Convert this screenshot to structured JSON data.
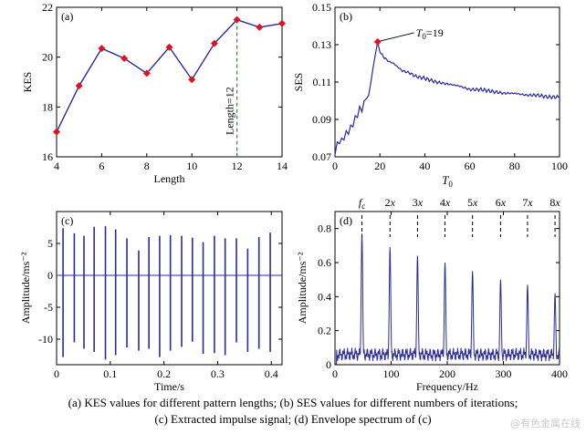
{
  "chart_data": [
    {
      "id": "a",
      "type": "line",
      "panel_label": "(a)",
      "xlabel": "Length",
      "ylabel": "KES",
      "xlim": [
        4,
        14
      ],
      "ylim": [
        16,
        22
      ],
      "xticks": [
        4,
        6,
        8,
        10,
        12,
        14
      ],
      "yticks": [
        16,
        18,
        20,
        22
      ],
      "grid": false,
      "x": [
        4,
        5,
        6,
        7,
        8,
        9,
        10,
        11,
        12,
        13,
        14
      ],
      "y": [
        17.0,
        18.85,
        20.35,
        19.95,
        19.35,
        20.4,
        19.1,
        20.55,
        21.5,
        21.2,
        21.35
      ],
      "marker": "diamond",
      "line_color": "#2a2a9c",
      "marker_color": "#e0141c",
      "annotation": {
        "text": "Length=12",
        "x": 12,
        "style": "dashed-vertical",
        "color": "#2e8b2e"
      }
    },
    {
      "id": "b",
      "type": "line",
      "panel_label": "(b)",
      "xlabel": "T0",
      "ylabel": "SES",
      "xlim": [
        0,
        100
      ],
      "ylim": [
        0.07,
        0.15
      ],
      "xticks": [
        0,
        20,
        40,
        60,
        80,
        100
      ],
      "yticks": [
        0.07,
        0.09,
        0.11,
        0.13,
        0.15
      ],
      "grid": false,
      "x": [
        0,
        1,
        2,
        3,
        4,
        5,
        6,
        7,
        8,
        9,
        10,
        11,
        12,
        13,
        14,
        15,
        16,
        17,
        18,
        19,
        20,
        22,
        24,
        26,
        28,
        30,
        33,
        36,
        40,
        45,
        50,
        55,
        60,
        65,
        70,
        75,
        80,
        85,
        90,
        95,
        100
      ],
      "y": [
        0.071,
        0.078,
        0.077,
        0.08,
        0.079,
        0.084,
        0.082,
        0.087,
        0.086,
        0.092,
        0.091,
        0.097,
        0.094,
        0.1,
        0.101,
        0.103,
        0.11,
        0.118,
        0.125,
        0.1315,
        0.126,
        0.123,
        0.121,
        0.12,
        0.118,
        0.116,
        0.115,
        0.113,
        0.112,
        0.11,
        0.109,
        0.108,
        0.106,
        0.106,
        0.105,
        0.104,
        0.104,
        0.103,
        0.103,
        0.102,
        0.102
      ],
      "line_color": "#2a2a9c",
      "highlight": {
        "x": 19,
        "y": 0.1315,
        "text": "T0=19",
        "marker_color": "#e0141c"
      }
    },
    {
      "id": "c",
      "type": "line",
      "panel_label": "(c)",
      "xlabel": "Time/s",
      "ylabel": "Amplitude/ms⁻²",
      "xlim": [
        0,
        0.42
      ],
      "ylim": [
        -14,
        10
      ],
      "xticks": [
        0,
        0.1,
        0.2,
        0.3,
        0.4
      ],
      "yticks": [
        -10,
        -5,
        0,
        5
      ],
      "grid": false,
      "line_color": "#2a2a9c",
      "impulses": {
        "t": [
          0.012,
          0.033,
          0.051,
          0.07,
          0.091,
          0.11,
          0.131,
          0.153,
          0.172,
          0.192,
          0.212,
          0.233,
          0.253,
          0.273,
          0.294,
          0.314,
          0.335,
          0.356,
          0.377,
          0.398
        ],
        "pos": [
          7.4,
          6.6,
          6.2,
          7.6,
          7.7,
          7.2,
          5.8,
          3.9,
          6.0,
          6.2,
          6.3,
          6.2,
          5.9,
          5.2,
          6.2,
          5.8,
          5.8,
          4.2,
          6.0,
          6.7
        ],
        "neg": [
          -12.8,
          -10.5,
          -11.5,
          -12.0,
          -13.2,
          -12.5,
          -11.3,
          -11.8,
          -11.5,
          -12.8,
          -11.8,
          -11.2,
          -10.4,
          -12.3,
          -12.2,
          -12.5,
          -10.5,
          -12.0,
          -11.5,
          -12.0
        ]
      }
    },
    {
      "id": "d",
      "type": "line",
      "panel_label": "(d)",
      "xlabel": "Frequency/Hz",
      "ylabel": "Amplitude/ms⁻²",
      "xlim": [
        0,
        400
      ],
      "ylim": [
        0,
        0.9
      ],
      "xticks": [
        100,
        200,
        300,
        400
      ],
      "xtick_labels_shown": [
        "0",
        "100",
        "200",
        "300",
        "400"
      ],
      "yticks": [
        0,
        0.2,
        0.4,
        0.6,
        0.8
      ],
      "grid": false,
      "line_color": "#2a2a9c",
      "harmonic_labels": [
        "f",
        "2x",
        "3x",
        "4x",
        "5x",
        "6x",
        "7x",
        "8x"
      ],
      "harmonic_label_subscript": "c",
      "peaks_x": [
        48,
        98,
        147,
        196,
        245,
        295,
        343,
        392
      ],
      "peaks_y": [
        0.77,
        0.69,
        0.64,
        0.6,
        0.55,
        0.5,
        0.47,
        0.42
      ],
      "noise_floor": 0.06
    }
  ],
  "caption": {
    "line1": "(a)  KES  values  for  different pattern lengths; (b) SES values for different numbers of iterations;",
    "line2": "(c) Extracted impulse signal; (d) Envelope spectrum of (c)"
  },
  "watermark": "@有色金属在线"
}
